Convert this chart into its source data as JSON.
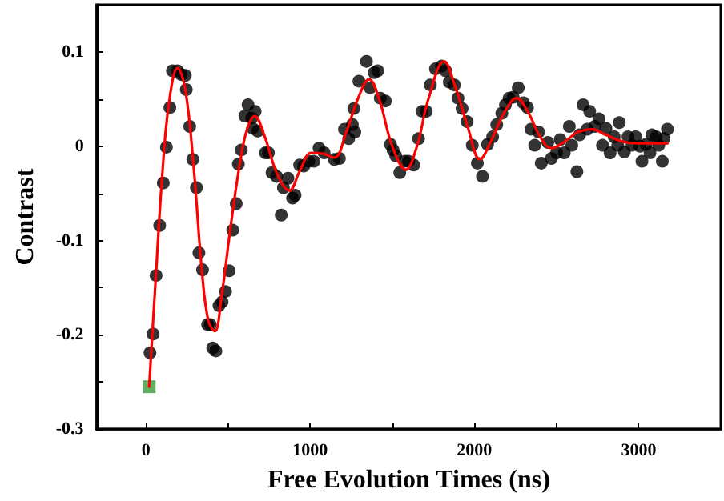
{
  "chart_data": {
    "type": "scatter",
    "xlabel": "Free Evolution Times (ns)",
    "ylabel": "Contrast",
    "xlim": [
      -300,
      3500
    ],
    "ylim": [
      -0.3,
      0.15
    ],
    "xticks": [
      0,
      {
        "value": 500,
        "label": null
      },
      1000,
      {
        "value": 1500,
        "label": null
      },
      2000,
      {
        "value": 2500,
        "label": null
      },
      3000
    ],
    "yticks": [
      -0.3,
      {
        "value": -0.25,
        "label": null
      },
      -0.2,
      {
        "value": -0.15,
        "label": null
      },
      -0.1,
      {
        "value": -0.05,
        "label": null
      },
      0.0,
      {
        "value": 0.05,
        "label": null
      },
      0.1
    ],
    "grid": false,
    "series": [
      {
        "marker": "circle",
        "color": "#000000",
        "x": [
          25,
          44,
          62,
          84,
          106,
          125,
          146,
          162,
          193,
          215,
          240,
          246,
          267,
          286,
          308,
          323,
          345,
          376,
          392,
          407,
          426,
          445,
          464,
          485,
          507,
          529,
          550,
          563,
          581,
          603,
          622,
          644,
          650,
          665,
          681,
          728,
          746,
          768,
          796,
          824,
          837,
          865,
          893,
          908,
          936,
          961,
          992,
          1023,
          1054,
          1085,
          1147,
          1178,
          1209,
          1235,
          1257,
          1266,
          1272,
          1297,
          1343,
          1365,
          1390,
          1411,
          1427,
          1458,
          1489,
          1505,
          1521,
          1546,
          1577,
          1599,
          1630,
          1660,
          1682,
          1707,
          1732,
          1763,
          1800,
          1825,
          1847,
          1878,
          1900,
          1925,
          1956,
          1987,
          2018,
          2049,
          2080,
          2111,
          2136,
          2167,
          2189,
          2211,
          2236,
          2267,
          2298,
          2323,
          2345,
          2367,
          2391,
          2407,
          2447,
          2469,
          2500,
          2522,
          2547,
          2578,
          2593,
          2624,
          2640,
          2662,
          2687,
          2702,
          2733,
          2758,
          2780,
          2801,
          2826,
          2851,
          2873,
          2882,
          2913,
          2935,
          2960,
          2982,
          3008,
          3020,
          3045,
          3069,
          3081,
          3106,
          3122,
          3144,
          3153,
          3175
        ],
        "values": [
          -0.219,
          -0.199,
          -0.137,
          -0.084,
          -0.039,
          -0.001,
          0.041,
          0.08,
          0.08,
          0.076,
          0.075,
          0.06,
          0.021,
          -0.014,
          -0.044,
          -0.113,
          -0.131,
          -0.189,
          -0.189,
          -0.214,
          -0.217,
          -0.169,
          -0.165,
          -0.154,
          -0.132,
          -0.089,
          -0.061,
          -0.019,
          -0.004,
          0.032,
          0.044,
          0.03,
          0.019,
          0.037,
          0.016,
          -0.007,
          -0.007,
          -0.028,
          -0.032,
          -0.073,
          -0.044,
          -0.034,
          -0.055,
          -0.052,
          -0.02,
          -0.021,
          -0.016,
          -0.016,
          -0.002,
          -0.007,
          -0.014,
          -0.013,
          0.018,
          0.008,
          0.023,
          0.04,
          0.015,
          0.069,
          0.09,
          0.062,
          0.078,
          0.08,
          0.051,
          0.048,
          0.002,
          -0.004,
          -0.01,
          -0.028,
          -0.016,
          -0.016,
          -0.02,
          0.008,
          0.037,
          0.037,
          0.065,
          0.082,
          0.085,
          0.08,
          0.068,
          0.065,
          0.051,
          0.04,
          0.026,
          0.001,
          -0.018,
          -0.032,
          0.002,
          0.01,
          0.023,
          0.035,
          0.044,
          0.051,
          0.052,
          0.062,
          0.046,
          0.041,
          0.018,
          0.001,
          0.015,
          -0.018,
          0.004,
          -0.013,
          -0.007,
          0.007,
          -0.007,
          0.021,
          0.001,
          -0.027,
          0.012,
          0.044,
          0.018,
          0.037,
          0.021,
          0.029,
          0.001,
          0.019,
          -0.007,
          0.01,
          0.001,
          0.025,
          -0.006,
          0.01,
          0.001,
          0.01,
          0.0,
          -0.016,
          0.002,
          -0.007,
          0.012,
          0.01,
          0.001,
          -0.016,
          0.008,
          0.018
        ]
      },
      {
        "marker": "square",
        "color": "#3a9a3a",
        "x": [
          20
        ],
        "values": [
          -0.255
        ]
      },
      {
        "type": "line",
        "marker": "none",
        "line_style": "solid",
        "color": "#ff0000",
        "x": [
          20,
          60,
          100,
          140,
          193,
          240,
          290,
          340,
          380,
          420,
          460,
          520,
          580,
          620,
          662,
          720,
          800,
          873,
          940,
          1007,
          1080,
          1147,
          1220,
          1290,
          1359,
          1420,
          1500,
          1583,
          1650,
          1720,
          1816,
          1880,
          1960,
          2034,
          2100,
          2180,
          2257,
          2330,
          2400,
          2469,
          2550,
          2630,
          2718,
          2800,
          2900,
          3000,
          3175
        ],
        "values": [
          -0.255,
          -0.14,
          -0.03,
          0.045,
          0.083,
          0.06,
          -0.02,
          -0.13,
          -0.185,
          -0.196,
          -0.16,
          -0.08,
          -0.01,
          0.02,
          0.032,
          0.012,
          -0.03,
          -0.047,
          -0.025,
          -0.007,
          -0.008,
          -0.012,
          0.015,
          0.05,
          0.071,
          0.05,
          0.0,
          -0.025,
          0.0,
          0.05,
          0.09,
          0.065,
          0.02,
          -0.014,
          0.005,
          0.035,
          0.051,
          0.035,
          0.01,
          -0.002,
          0.005,
          0.015,
          0.018,
          0.012,
          0.005,
          0.003,
          0.003
        ]
      }
    ]
  }
}
